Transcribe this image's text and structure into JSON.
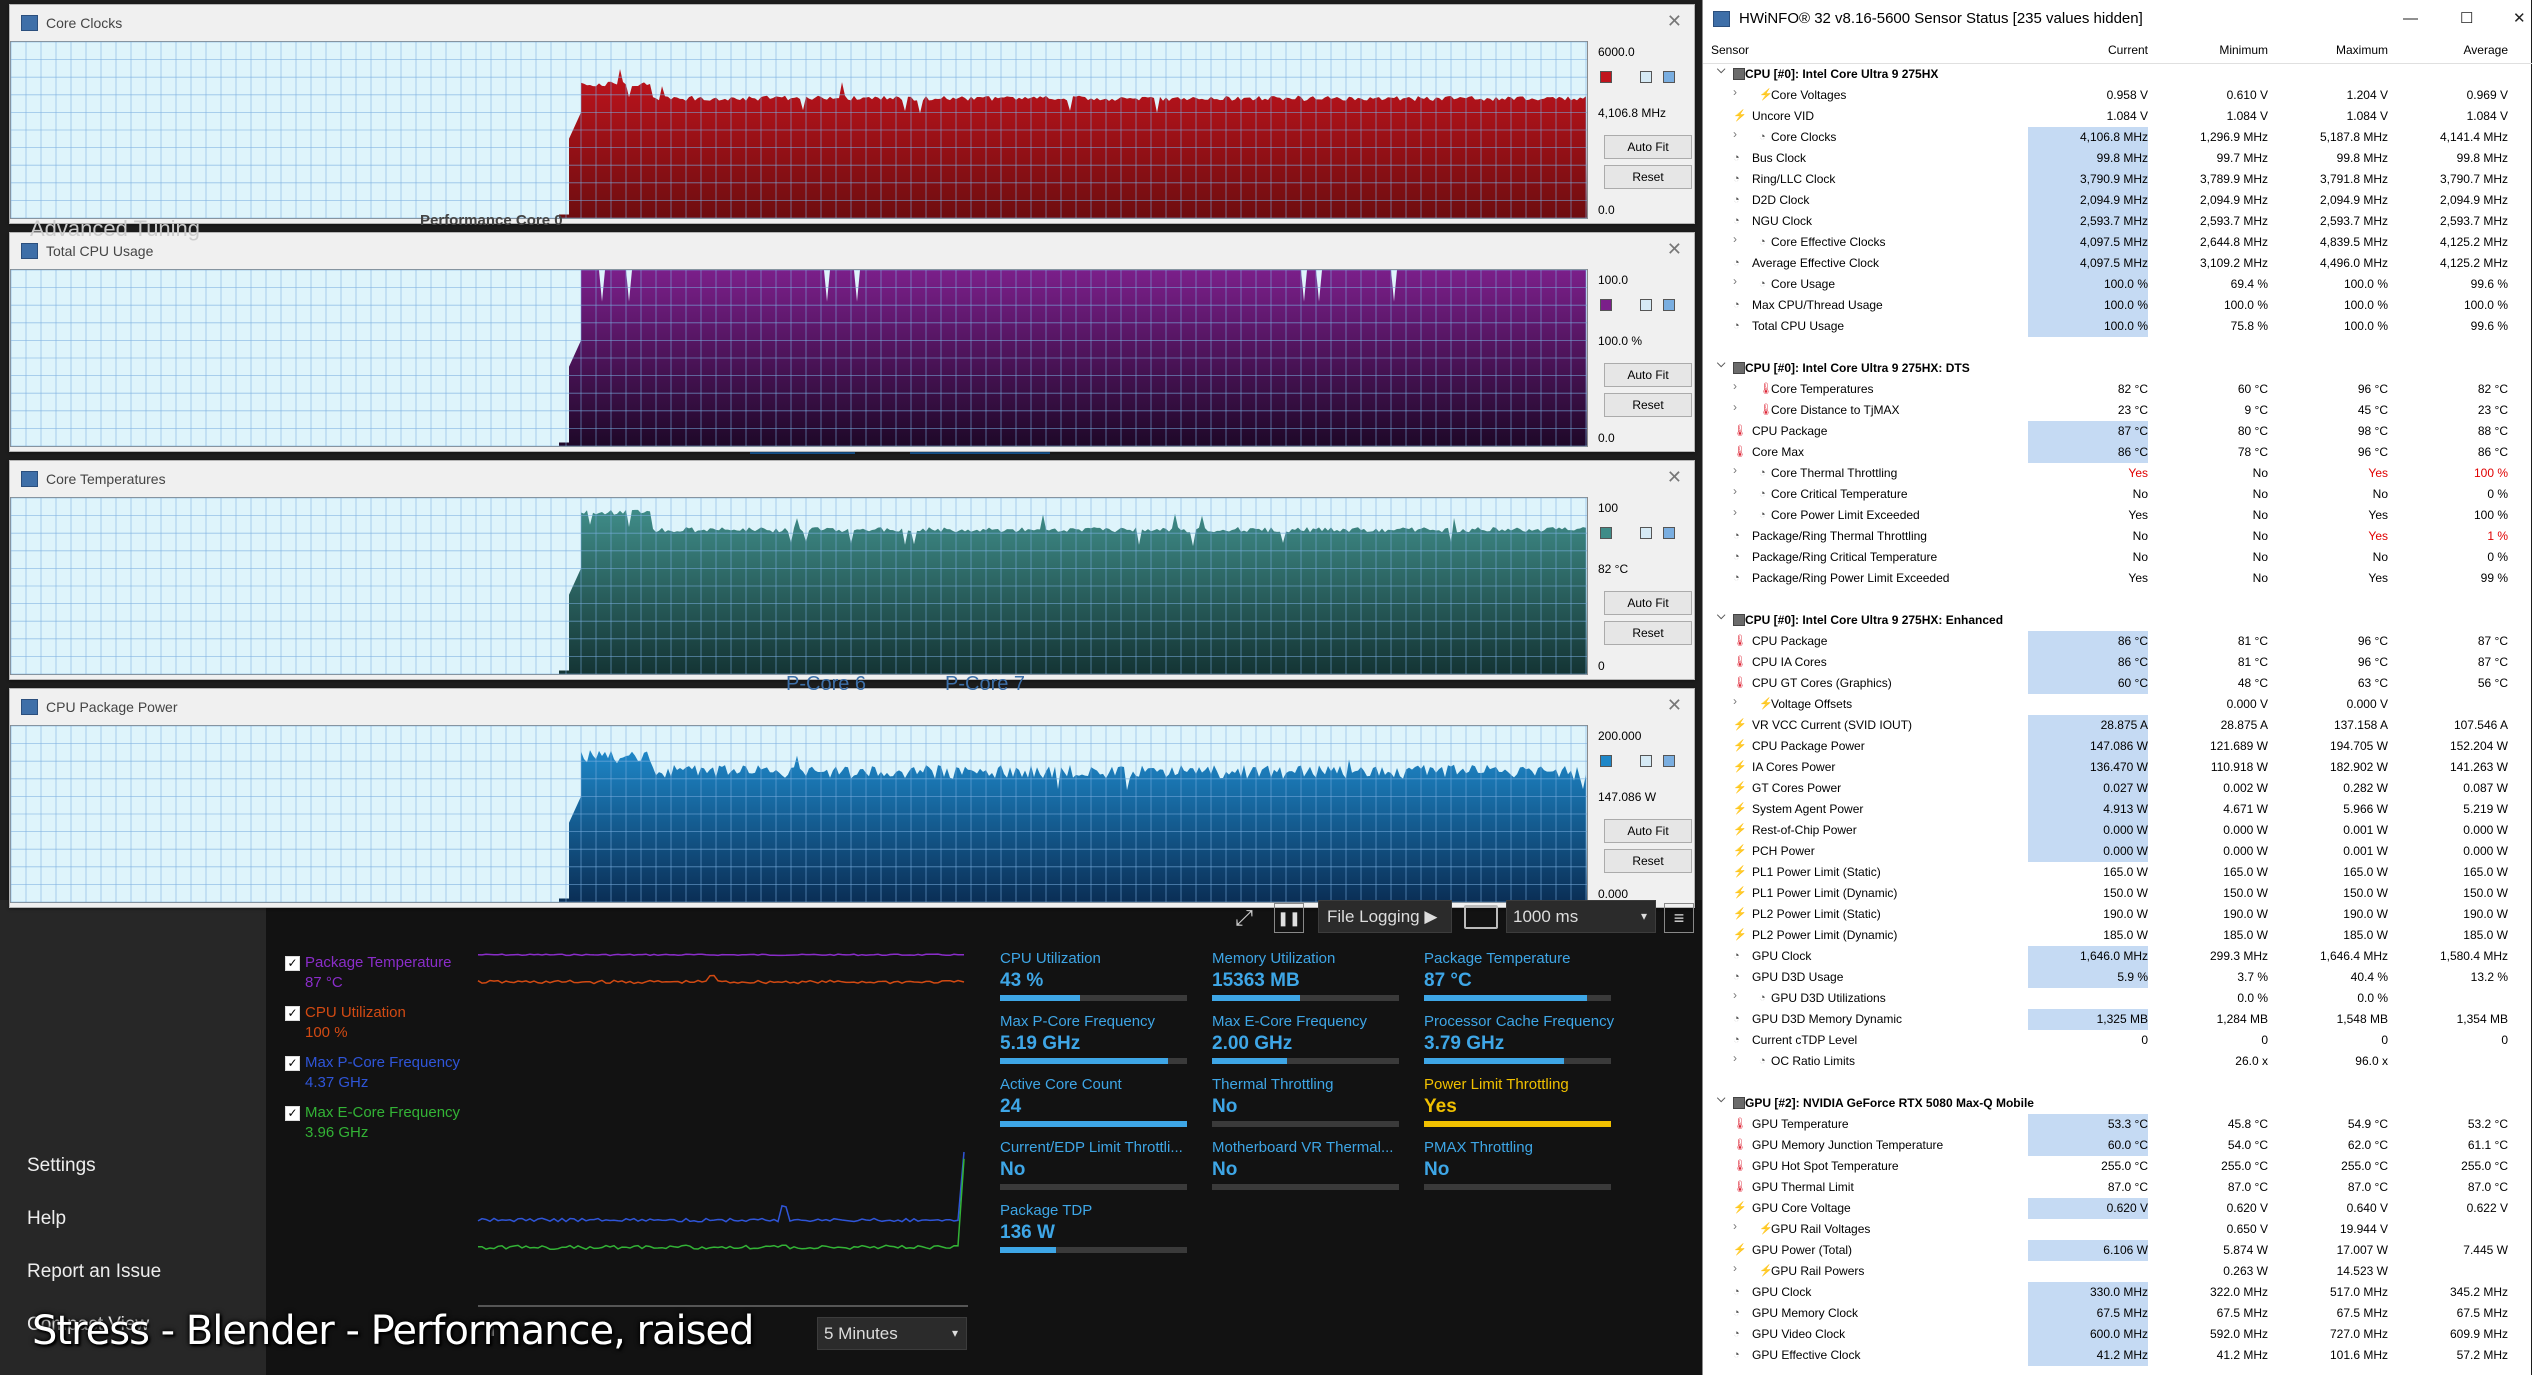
{
  "graphs": [
    {
      "title": "Core Clocks",
      "max": "6000.0",
      "current": "4,106.8 MHz",
      "min": "0.0",
      "color": "#c0141d",
      "dark": "#6e0d10",
      "fill_ratio": 0.68,
      "auto_fit": "Auto Fit",
      "reset": "Reset"
    },
    {
      "title": "Total CPU Usage",
      "max": "100.0",
      "current": "100.0 %",
      "min": "0.0",
      "color": "#7b1f8a",
      "dark": "#1e0828",
      "fill_ratio": 1.0,
      "auto_fit": "Auto Fit",
      "reset": "Reset"
    },
    {
      "title": "Core Temperatures",
      "max": "100",
      "current": "82 °C",
      "min": "0",
      "color": "#3f8c88",
      "dark": "#143434",
      "fill_ratio": 0.82,
      "auto_fit": "Auto Fit",
      "reset": "Reset"
    },
    {
      "title": "CPU Package Power",
      "max": "200.000",
      "current": "147.086 W",
      "min": "0.000",
      "color": "#1e87c8",
      "dark": "#0a2e55",
      "fill_ratio": 0.74,
      "auto_fit": "Auto Fit",
      "reset": "Reset"
    }
  ],
  "background_fragments": {
    "advanced_tuning": "Advanced Tuning",
    "performance_core": "Performance Core 0",
    "p_core_6": "P-Core 6",
    "p_core_7": "P-Core 7"
  },
  "hwinfo": {
    "title": "HWiNFO® 32 v8.16-5600 Sensor Status [235 values hidden]",
    "columns": [
      "Sensor",
      "Current",
      "Minimum",
      "Maximum",
      "Average"
    ],
    "rows": [
      {
        "t": "group",
        "label": "CPU [#0]: Intel Core Ultra 9 275HX"
      },
      {
        "t": "item",
        "icon": "volt",
        "exp": true,
        "label": "Core Voltages",
        "v": [
          "0.958 V",
          "0.610 V",
          "1.204 V",
          "0.969 V"
        ]
      },
      {
        "t": "item",
        "icon": "volt",
        "top": true,
        "label": "Uncore VID",
        "v": [
          "1.084 V",
          "1.084 V",
          "1.084 V",
          "1.084 V"
        ]
      },
      {
        "t": "item",
        "icon": "clock",
        "exp": true,
        "label": "Core Clocks",
        "v": [
          "4,106.8 MHz",
          "1,296.9 MHz",
          "5,187.8 MHz",
          "4,141.4 MHz"
        ],
        "hl": true
      },
      {
        "t": "item",
        "icon": "clock",
        "top": true,
        "label": "Bus Clock",
        "v": [
          "99.8 MHz",
          "99.7 MHz",
          "99.8 MHz",
          "99.8 MHz"
        ],
        "hl": true
      },
      {
        "t": "item",
        "icon": "clock",
        "top": true,
        "label": "Ring/LLC Clock",
        "v": [
          "3,790.9 MHz",
          "3,789.9 MHz",
          "3,791.8 MHz",
          "3,790.7 MHz"
        ],
        "hl": true
      },
      {
        "t": "item",
        "icon": "clock",
        "top": true,
        "label": "D2D Clock",
        "v": [
          "2,094.9 MHz",
          "2,094.9 MHz",
          "2,094.9 MHz",
          "2,094.9 MHz"
        ],
        "hl": true
      },
      {
        "t": "item",
        "icon": "clock",
        "top": true,
        "label": "NGU Clock",
        "v": [
          "2,593.7 MHz",
          "2,593.7 MHz",
          "2,593.7 MHz",
          "2,593.7 MHz"
        ],
        "hl": true
      },
      {
        "t": "item",
        "icon": "clock",
        "exp": true,
        "label": "Core Effective Clocks",
        "v": [
          "4,097.5 MHz",
          "2,644.8 MHz",
          "4,839.5 MHz",
          "4,125.2 MHz"
        ],
        "hl": true
      },
      {
        "t": "item",
        "icon": "clock",
        "top": true,
        "label": "Average Effective Clock",
        "v": [
          "4,097.5 MHz",
          "3,109.2 MHz",
          "4,496.0 MHz",
          "4,125.2 MHz"
        ],
        "hl": true
      },
      {
        "t": "item",
        "icon": "clock",
        "exp": true,
        "label": "Core Usage",
        "v": [
          "100.0 %",
          "69.4 %",
          "100.0 %",
          "99.6 %"
        ],
        "hl": true
      },
      {
        "t": "item",
        "icon": "clock",
        "top": true,
        "label": "Max CPU/Thread Usage",
        "v": [
          "100.0 %",
          "100.0 %",
          "100.0 %",
          "100.0 %"
        ],
        "hl": true
      },
      {
        "t": "item",
        "icon": "clock",
        "top": true,
        "label": "Total CPU Usage",
        "v": [
          "100.0 %",
          "75.8 %",
          "100.0 %",
          "99.6 %"
        ],
        "hl": true
      },
      {
        "t": "sep"
      },
      {
        "t": "group",
        "label": "CPU [#0]: Intel Core Ultra 9 275HX: DTS"
      },
      {
        "t": "item",
        "icon": "temp",
        "exp": true,
        "label": "Core Temperatures",
        "v": [
          "82 °C",
          "60 °C",
          "96 °C",
          "82 °C"
        ]
      },
      {
        "t": "item",
        "icon": "temp",
        "exp": true,
        "label": "Core Distance to TjMAX",
        "v": [
          "23 °C",
          "9 °C",
          "45 °C",
          "23 °C"
        ]
      },
      {
        "t": "item",
        "icon": "temp",
        "top": true,
        "label": "CPU Package",
        "v": [
          "87 °C",
          "80 °C",
          "98 °C",
          "88 °C"
        ],
        "hl": true
      },
      {
        "t": "item",
        "icon": "temp",
        "top": true,
        "label": "Core Max",
        "v": [
          "86 °C",
          "78 °C",
          "96 °C",
          "86 °C"
        ],
        "hl": true
      },
      {
        "t": "item",
        "icon": "clock",
        "exp": true,
        "label": "Core Thermal Throttling",
        "v": [
          "Yes",
          "No",
          "Yes",
          "100 %"
        ],
        "red": [
          0,
          2,
          3
        ]
      },
      {
        "t": "item",
        "icon": "clock",
        "exp": true,
        "label": "Core Critical Temperature",
        "v": [
          "No",
          "No",
          "No",
          "0 %"
        ]
      },
      {
        "t": "item",
        "icon": "clock",
        "exp": true,
        "label": "Core Power Limit Exceeded",
        "v": [
          "Yes",
          "No",
          "Yes",
          "100 %"
        ]
      },
      {
        "t": "item",
        "icon": "clock",
        "top": true,
        "label": "Package/Ring Thermal Throttling",
        "v": [
          "No",
          "No",
          "Yes",
          "1 %"
        ],
        "red": [
          2,
          3
        ]
      },
      {
        "t": "item",
        "icon": "clock",
        "top": true,
        "label": "Package/Ring Critical Temperature",
        "v": [
          "No",
          "No",
          "No",
          "0 %"
        ]
      },
      {
        "t": "item",
        "icon": "clock",
        "top": true,
        "label": "Package/Ring Power Limit Exceeded",
        "v": [
          "Yes",
          "No",
          "Yes",
          "99 %"
        ]
      },
      {
        "t": "sep"
      },
      {
        "t": "group",
        "label": "CPU [#0]: Intel Core Ultra 9 275HX: Enhanced"
      },
      {
        "t": "item",
        "icon": "temp",
        "top": true,
        "label": "CPU Package",
        "v": [
          "86 °C",
          "81 °C",
          "96 °C",
          "87 °C"
        ],
        "hl": true
      },
      {
        "t": "item",
        "icon": "temp",
        "top": true,
        "label": "CPU IA Cores",
        "v": [
          "86 °C",
          "81 °C",
          "96 °C",
          "87 °C"
        ],
        "hl": true
      },
      {
        "t": "item",
        "icon": "temp",
        "top": true,
        "label": "CPU GT Cores (Graphics)",
        "v": [
          "60 °C",
          "48 °C",
          "63 °C",
          "56 °C"
        ],
        "hl": true
      },
      {
        "t": "item",
        "icon": "volt",
        "exp": true,
        "label": "Voltage Offsets",
        "v": [
          "",
          "0.000 V",
          "0.000 V",
          ""
        ]
      },
      {
        "t": "item",
        "icon": "volt",
        "top": true,
        "label": "VR VCC Current (SVID IOUT)",
        "v": [
          "28.875 A",
          "28.875 A",
          "137.158 A",
          "107.546 A"
        ],
        "hl": true
      },
      {
        "t": "item",
        "icon": "volt",
        "top": true,
        "label": "CPU Package Power",
        "v": [
          "147.086 W",
          "121.689 W",
          "194.705 W",
          "152.204 W"
        ],
        "hl": true
      },
      {
        "t": "item",
        "icon": "volt",
        "top": true,
        "label": "IA Cores Power",
        "v": [
          "136.470 W",
          "110.918 W",
          "182.902 W",
          "141.263 W"
        ],
        "hl": true
      },
      {
        "t": "item",
        "icon": "volt",
        "top": true,
        "label": "GT Cores Power",
        "v": [
          "0.027 W",
          "0.002 W",
          "0.282 W",
          "0.087 W"
        ],
        "hl": true
      },
      {
        "t": "item",
        "icon": "volt",
        "top": true,
        "label": "System Agent Power",
        "v": [
          "4.913 W",
          "4.671 W",
          "5.966 W",
          "5.219 W"
        ],
        "hl": true
      },
      {
        "t": "item",
        "icon": "volt",
        "top": true,
        "label": "Rest-of-Chip Power",
        "v": [
          "0.000 W",
          "0.000 W",
          "0.001 W",
          "0.000 W"
        ],
        "hl": true
      },
      {
        "t": "item",
        "icon": "volt",
        "top": true,
        "label": "PCH Power",
        "v": [
          "0.000 W",
          "0.000 W",
          "0.001 W",
          "0.000 W"
        ],
        "hl": true
      },
      {
        "t": "item",
        "icon": "volt",
        "top": true,
        "label": "PL1 Power Limit (Static)",
        "v": [
          "165.0 W",
          "165.0 W",
          "165.0 W",
          "165.0 W"
        ]
      },
      {
        "t": "item",
        "icon": "volt",
        "top": true,
        "label": "PL1 Power Limit (Dynamic)",
        "v": [
          "150.0 W",
          "150.0 W",
          "150.0 W",
          "150.0 W"
        ]
      },
      {
        "t": "item",
        "icon": "volt",
        "top": true,
        "label": "PL2 Power Limit (Static)",
        "v": [
          "190.0 W",
          "190.0 W",
          "190.0 W",
          "190.0 W"
        ]
      },
      {
        "t": "item",
        "icon": "volt",
        "top": true,
        "label": "PL2 Power Limit (Dynamic)",
        "v": [
          "185.0 W",
          "185.0 W",
          "185.0 W",
          "185.0 W"
        ]
      },
      {
        "t": "item",
        "icon": "clock",
        "top": true,
        "label": "GPU Clock",
        "v": [
          "1,646.0 MHz",
          "299.3 MHz",
          "1,646.4 MHz",
          "1,580.4 MHz"
        ],
        "hl": true
      },
      {
        "t": "item",
        "icon": "clock",
        "top": true,
        "label": "GPU D3D Usage",
        "v": [
          "5.9 %",
          "3.7 %",
          "40.4 %",
          "13.2 %"
        ],
        "hl": true
      },
      {
        "t": "item",
        "icon": "clock",
        "exp": true,
        "label": "GPU D3D Utilizations",
        "v": [
          "",
          "0.0 %",
          "0.0 %",
          ""
        ]
      },
      {
        "t": "item",
        "icon": "clock",
        "top": true,
        "label": "GPU D3D Memory Dynamic",
        "v": [
          "1,325 MB",
          "1,284 MB",
          "1,548 MB",
          "1,354 MB"
        ],
        "hl": true
      },
      {
        "t": "item",
        "icon": "clock",
        "top": true,
        "label": "Current cTDP Level",
        "v": [
          "0",
          "0",
          "0",
          "0"
        ]
      },
      {
        "t": "item",
        "icon": "clock",
        "exp": true,
        "label": "OC Ratio Limits",
        "v": [
          "",
          "26.0 x",
          "96.0 x",
          ""
        ]
      },
      {
        "t": "sep"
      },
      {
        "t": "group",
        "label": "GPU [#2]: NVIDIA  GeForce RTX 5080 Max-Q Mobile"
      },
      {
        "t": "item",
        "icon": "temp",
        "top": true,
        "label": "GPU Temperature",
        "v": [
          "53.3 °C",
          "45.8 °C",
          "54.9 °C",
          "53.2 °C"
        ],
        "hl": true
      },
      {
        "t": "item",
        "icon": "temp",
        "top": true,
        "label": "GPU Memory Junction Temperature",
        "v": [
          "60.0 °C",
          "54.0 °C",
          "62.0 °C",
          "61.1 °C"
        ],
        "hl": true
      },
      {
        "t": "item",
        "icon": "temp",
        "top": true,
        "label": "GPU Hot Spot Temperature",
        "v": [
          "255.0 °C",
          "255.0 °C",
          "255.0 °C",
          "255.0 °C"
        ]
      },
      {
        "t": "item",
        "icon": "temp",
        "top": true,
        "label": "GPU Thermal Limit",
        "v": [
          "87.0 °C",
          "87.0 °C",
          "87.0 °C",
          "87.0 °C"
        ]
      },
      {
        "t": "item",
        "icon": "volt",
        "top": true,
        "label": "GPU Core Voltage",
        "v": [
          "0.620 V",
          "0.620 V",
          "0.640 V",
          "0.622 V"
        ],
        "hl": true
      },
      {
        "t": "item",
        "icon": "volt",
        "exp": true,
        "label": "GPU Rail Voltages",
        "v": [
          "",
          "0.650 V",
          "19.944 V",
          ""
        ]
      },
      {
        "t": "item",
        "icon": "volt",
        "top": true,
        "label": "GPU Power (Total)",
        "v": [
          "6.106 W",
          "5.874 W",
          "17.007 W",
          "7.445 W"
        ],
        "hl": true
      },
      {
        "t": "item",
        "icon": "volt",
        "exp": true,
        "label": "GPU Rail Powers",
        "v": [
          "",
          "0.263 W",
          "14.523 W",
          ""
        ]
      },
      {
        "t": "item",
        "icon": "clock",
        "top": true,
        "label": "GPU Clock",
        "v": [
          "330.0 MHz",
          "322.0 MHz",
          "517.0 MHz",
          "345.2 MHz"
        ],
        "hl": true
      },
      {
        "t": "item",
        "icon": "clock",
        "top": true,
        "label": "GPU Memory Clock",
        "v": [
          "67.5 MHz",
          "67.5 MHz",
          "67.5 MHz",
          "67.5 MHz"
        ],
        "hl": true
      },
      {
        "t": "item",
        "icon": "clock",
        "top": true,
        "label": "GPU Video Clock",
        "v": [
          "600.0 MHz",
          "592.0 MHz",
          "727.0 MHz",
          "609.9 MHz"
        ],
        "hl": true
      },
      {
        "t": "item",
        "icon": "clock",
        "top": true,
        "label": "GPU Effective Clock",
        "v": [
          "41.2 MHz",
          "41.2 MHz",
          "101.6 MHz",
          "57.2 MHz"
        ],
        "hl": true
      }
    ]
  },
  "xtu": {
    "legend": [
      {
        "name": "Package Temperature",
        "value": "87 °C",
        "color": "#8a2dc9",
        "checked": "✓"
      },
      {
        "name": "CPU Utilization",
        "value": "100 %",
        "color": "#d24a12",
        "checked": "✓"
      },
      {
        "name": "Max P-Core Frequency",
        "value": "4.37 GHz",
        "color": "#2f55d8",
        "checked": "✓"
      },
      {
        "name": "Max E-Core Frequency",
        "value": "3.96 GHz",
        "color": "#33b336",
        "checked": "✓"
      }
    ],
    "menu": {
      "settings": "Settings",
      "help": "Help",
      "report": "Report an Issue",
      "compact": "Compact View"
    },
    "toolbar": {
      "file_logging": "File Logging ▶",
      "interval": "1000 ms",
      "timespan": "5 Minutes"
    },
    "metrics": [
      {
        "label": "CPU Utilization",
        "value": "43 %",
        "bar": 0.43,
        "warn": false
      },
      {
        "label": "Memory Utilization",
        "value": "15363 MB",
        "bar": 0.47,
        "warn": false
      },
      {
        "label": "Package Temperature",
        "value": "87 °C",
        "bar": 0.87,
        "warn": false
      },
      {
        "label": "Max P-Core Frequency",
        "value": "5.19 GHz",
        "bar": 0.9,
        "warn": false
      },
      {
        "label": "Max E-Core Frequency",
        "value": "2.00 GHz",
        "bar": 0.4,
        "warn": false
      },
      {
        "label": "Processor Cache Frequency",
        "value": "3.79 GHz",
        "bar": 0.75,
        "warn": false
      },
      {
        "label": "Active Core Count",
        "value": "24",
        "bar": 1.0,
        "warn": false
      },
      {
        "label": "Thermal Throttling",
        "value": "No",
        "bar": 0,
        "warn": false
      },
      {
        "label": "Power Limit Throttling",
        "value": "Yes",
        "bar": 1.0,
        "warn": true
      },
      {
        "label": "Current/EDP Limit Throttli...",
        "value": "No",
        "bar": 0,
        "warn": false
      },
      {
        "label": "Motherboard VR Thermal...",
        "value": "No",
        "bar": 0,
        "warn": false
      },
      {
        "label": "PMAX Throttling",
        "value": "No",
        "bar": 0,
        "warn": false
      },
      {
        "label": "Package TDP",
        "value": "136 W",
        "bar": 0.3,
        "warn": false
      }
    ],
    "caption": "Stress - Blender - Performance, raised"
  },
  "colors": {
    "accent": "#3ea6e6",
    "warning": "#f0c000",
    "graph_bg": "#def4fb"
  }
}
